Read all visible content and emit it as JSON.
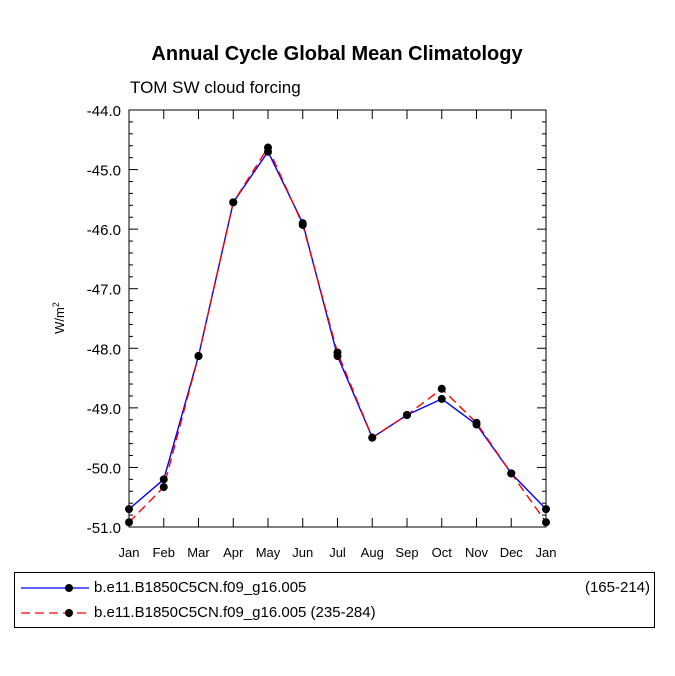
{
  "chart_data": {
    "type": "line",
    "title": "Annual Cycle Global Mean Climatology",
    "subtitle": "TOM SW cloud forcing",
    "xlabel": "",
    "ylabel": "W/m",
    "ylabel_superscript": "2",
    "categories": [
      "Jan",
      "Feb",
      "Mar",
      "Apr",
      "May",
      "Jun",
      "Jul",
      "Aug",
      "Sep",
      "Oct",
      "Nov",
      "Dec",
      "Jan"
    ],
    "ylim": [
      -51.0,
      -44.0
    ],
    "yticks": [
      -51.0,
      -50.0,
      -49.0,
      -48.0,
      -47.0,
      -46.0,
      -45.0,
      -44.0
    ],
    "ytick_labels": [
      "-51.0",
      "-50.0",
      "-49.0",
      "-48.0",
      "-47.0",
      "-46.0",
      "-45.0",
      "-44.0"
    ],
    "grid": false,
    "series": [
      {
        "name": "b.e11.B1850C5CN.f09_g16.005",
        "range": "(165-214)",
        "color": "#0000ff",
        "dash": "solid",
        "values": [
          -50.7,
          -50.2,
          -48.13,
          -45.55,
          -44.7,
          -45.9,
          -48.13,
          -49.5,
          -49.12,
          -48.85,
          -49.28,
          -50.1,
          -50.7
        ]
      },
      {
        "name": "b.e11.B1850C5CN.f09_g16.005 (235-284)",
        "color": "#ff0000",
        "dash": "dashed",
        "values": [
          -50.92,
          -50.33,
          -48.13,
          -45.55,
          -44.63,
          -45.93,
          -48.07,
          -49.5,
          -49.12,
          -48.68,
          -49.25,
          -50.1,
          -50.92
        ]
      }
    ],
    "legend_position": "bottom"
  }
}
